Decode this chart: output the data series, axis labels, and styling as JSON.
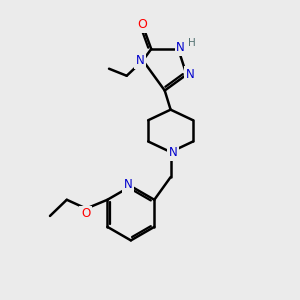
{
  "bg_color": "#ebebeb",
  "atom_colors": {
    "C": "#000000",
    "N": "#0000cc",
    "O": "#ff0000",
    "H": "#507070"
  },
  "bond_color": "#000000",
  "bond_width": 1.8,
  "xlim": [
    0,
    10
  ],
  "ylim": [
    0,
    10
  ],
  "figsize": [
    3.0,
    3.0
  ],
  "dpi": 100
}
